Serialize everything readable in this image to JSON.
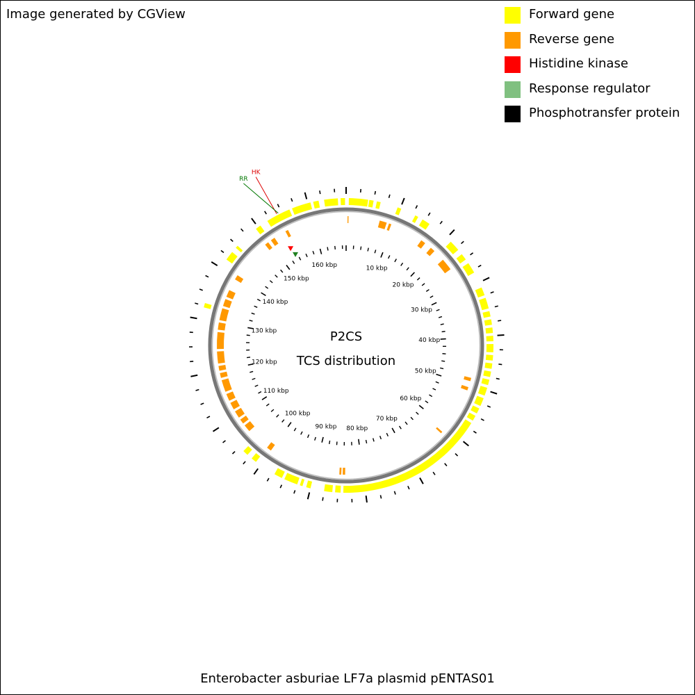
{
  "credit": "Image generated by CGView",
  "title_line1": "P2CS",
  "title_line2": "TCS distribution",
  "caption": "Enterobacter asburiae LF7a plasmid pENTAS01",
  "legend": [
    {
      "label": "Forward gene",
      "color": "#ffff00"
    },
    {
      "label": "Reverse gene",
      "color": "#ff9900"
    },
    {
      "label": "Histidine kinase",
      "color": "#ff0000"
    },
    {
      "label": "Response regulator",
      "color": "#80c080"
    },
    {
      "label": "Phosphotransfer protein",
      "color": "#000000"
    }
  ],
  "chart_data": {
    "type": "circular_genome_map",
    "sequence_length_kbp": 167,
    "ruler_labels": [
      "10 kbp",
      "20 kbp",
      "30 kbp",
      "40 kbp",
      "50 kbp",
      "60 kbp",
      "70 kbp",
      "80 kbp",
      "90 kbp",
      "100 kbp",
      "110 kbp",
      "120 kbp",
      "130 kbp",
      "140 kbp",
      "150 kbp",
      "160 kbp"
    ],
    "ruler_label_kbp": [
      10,
      20,
      30,
      40,
      50,
      60,
      70,
      80,
      90,
      100,
      110,
      120,
      130,
      140,
      150,
      160
    ],
    "forward_genes_kbp": [
      [
        0.5,
        4
      ],
      [
        4.2,
        5
      ],
      [
        5.6,
        6.3
      ],
      [
        9.5,
        10.2
      ],
      [
        13,
        13.6
      ],
      [
        14.5,
        16
      ],
      [
        21,
        23
      ],
      [
        24,
        25.2
      ],
      [
        26,
        28
      ],
      [
        31,
        32.5
      ],
      [
        33,
        35
      ],
      [
        35.5,
        36.5
      ],
      [
        37,
        38
      ],
      [
        38.5,
        39.5
      ],
      [
        40,
        41
      ],
      [
        41.5,
        43
      ],
      [
        43.5,
        44.5
      ],
      [
        45,
        46
      ],
      [
        46.5,
        47.5
      ],
      [
        48,
        49
      ],
      [
        49.5,
        51
      ],
      [
        51.5,
        53
      ],
      [
        53.5,
        54.5
      ],
      [
        55,
        56
      ],
      [
        56.5,
        84
      ],
      [
        84.5,
        85.5
      ],
      [
        86,
        87.5
      ],
      [
        90,
        90.8
      ],
      [
        91.5,
        92
      ],
      [
        92.5,
        95
      ],
      [
        95.5,
        97
      ],
      [
        101,
        102
      ],
      [
        103,
        104
      ],
      [
        132.2,
        133
      ],
      [
        141.8,
        143.5
      ],
      [
        144.5,
        145
      ],
      [
        149.5,
        150.5
      ],
      [
        152,
        156.5
      ],
      [
        157,
        160.5
      ],
      [
        161,
        162
      ],
      [
        163,
        165.5
      ],
      [
        166,
        166.8
      ]
    ],
    "reverse_genes_kbp": [
      [
        0.3,
        0.5
      ],
      [
        7,
        8.5
      ],
      [
        9,
        9.5
      ],
      [
        16.5,
        17.5
      ],
      [
        19,
        20
      ],
      [
        22.5,
        25
      ],
      [
        48.5,
        49.2
      ],
      [
        50.5,
        51.2
      ],
      [
        61.2,
        61.6
      ],
      [
        83.7,
        84.2
      ],
      [
        84.5,
        84.9
      ],
      [
        100,
        101
      ],
      [
        106,
        107.5
      ],
      [
        108,
        109
      ],
      [
        109.5,
        111
      ],
      [
        111.5,
        113
      ],
      [
        113.5,
        115
      ],
      [
        115.5,
        118
      ],
      [
        118.5,
        119.5
      ],
      [
        120,
        121
      ],
      [
        121.5,
        124
      ],
      [
        124.5,
        128
      ],
      [
        128.5,
        130
      ],
      [
        130.5,
        133
      ],
      [
        133.5,
        135
      ],
      [
        135.5,
        137
      ],
      [
        139.5,
        140.5
      ],
      [
        149,
        149.8
      ],
      [
        150.5,
        151.4
      ],
      [
        154,
        154.6
      ]
    ],
    "histidine_kinase_kbp": [
      153.2
    ],
    "response_regulator_kbp": [
      153.5
    ],
    "callout_labels": [
      "HK",
      "RR"
    ],
    "callout_colors": [
      "#dd0000",
      "#007700"
    ]
  }
}
